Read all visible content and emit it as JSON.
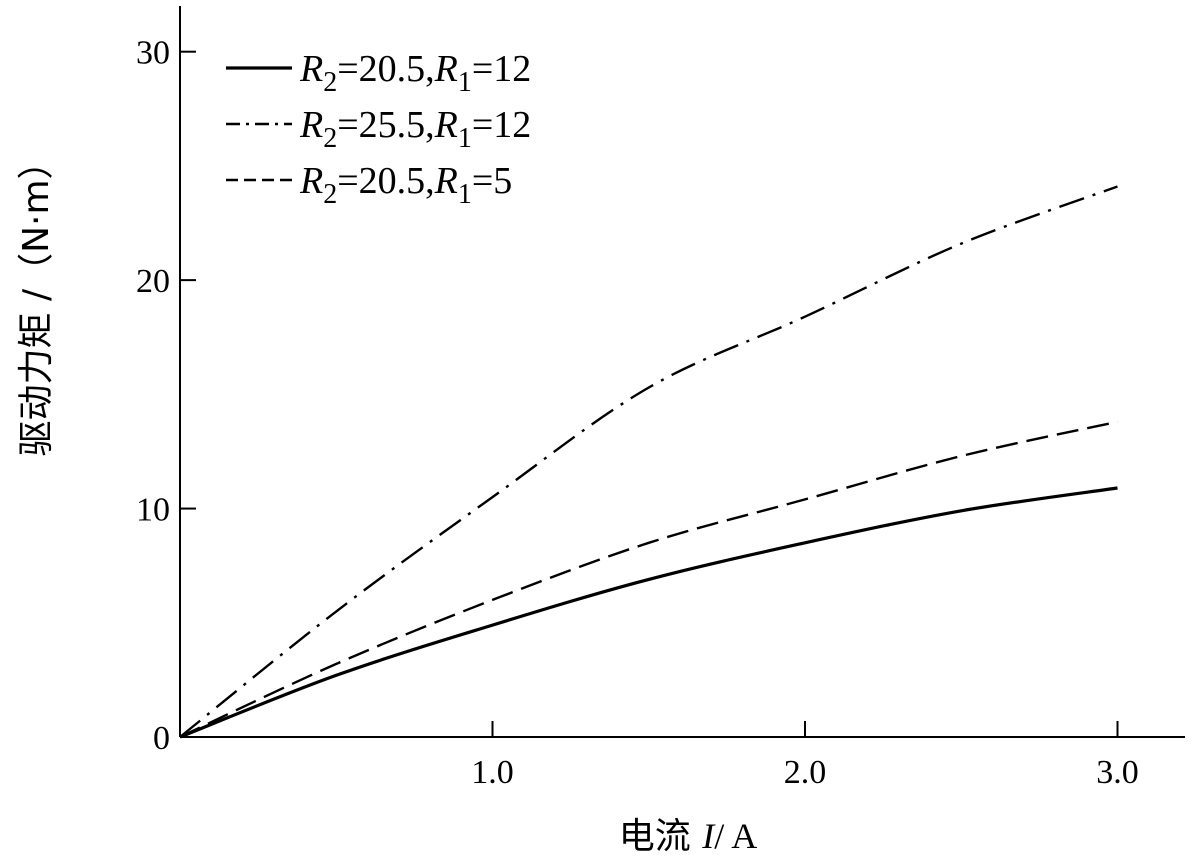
{
  "chart_data": {
    "type": "line",
    "title": "",
    "xlabel": {
      "prefix": "电流 ",
      "var": "I",
      "unit": "/ A"
    },
    "ylabel": "驱动力矩 /（N·m）",
    "xlim": [
      0,
      3.2
    ],
    "ylim": [
      0,
      32
    ],
    "xticks": [
      1.0,
      2.0,
      3.0
    ],
    "xtick_labels": [
      "1.0",
      "2.0",
      "3.0"
    ],
    "yticks": [
      0,
      10,
      20,
      30
    ],
    "ytick_labels": [
      "0",
      "10",
      "20",
      "30"
    ],
    "grid": false,
    "legend_position": "top-left",
    "series": [
      {
        "name": "R2=20.5,R1=12",
        "label": {
          "a": "R",
          "a_sub": "2",
          "a_val": "=20.5,",
          "b": "R",
          "b_sub": "1",
          "b_val": "=12"
        },
        "style": "solid",
        "x": [
          0,
          0.5,
          1.0,
          1.5,
          2.0,
          2.5,
          3.0
        ],
        "y": [
          0,
          2.7,
          4.9,
          6.9,
          8.5,
          9.9,
          10.9
        ]
      },
      {
        "name": "R2=25.5,R1=12",
        "label": {
          "a": "R",
          "a_sub": "2",
          "a_val": "=25.5,",
          "b": "R",
          "b_sub": "1",
          "b_val": "=12"
        },
        "style": "dashdot",
        "x": [
          0,
          0.5,
          1.0,
          1.5,
          2.0,
          2.5,
          3.0
        ],
        "y": [
          0,
          5.5,
          10.5,
          15.3,
          18.4,
          21.6,
          24.1
        ]
      },
      {
        "name": "R2=20.5,R1=5",
        "label": {
          "a": "R",
          "a_sub": "2",
          "a_val": "=20.5,",
          "b": "R",
          "b_sub": "1",
          "b_val": "=5"
        },
        "style": "dashed",
        "x": [
          0,
          0.5,
          1.0,
          1.5,
          2.0,
          2.5,
          3.0
        ],
        "y": [
          0,
          3.2,
          6.0,
          8.5,
          10.4,
          12.3,
          13.8
        ]
      }
    ]
  }
}
